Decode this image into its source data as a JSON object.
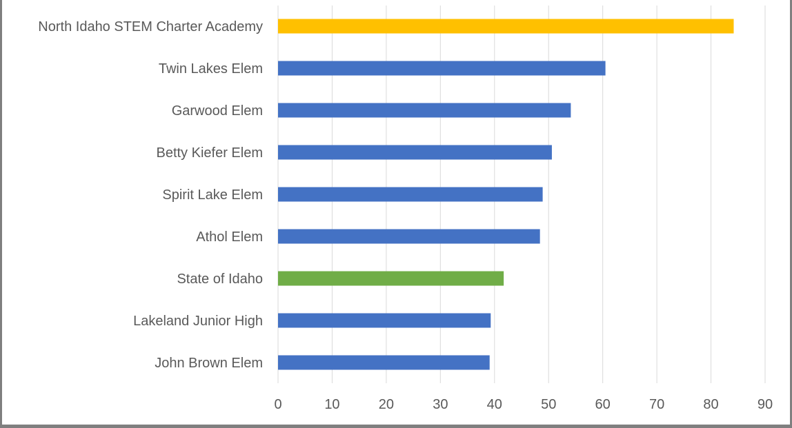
{
  "chart_data": {
    "type": "bar",
    "orientation": "horizontal",
    "title": "",
    "xlabel": "",
    "ylabel": "",
    "categories": [
      "North Idaho STEM Charter Academy",
      "Twin Lakes Elem",
      "Garwood Elem",
      "Betty Kiefer Elem",
      "Spirit Lake Elem",
      "Athol Elem",
      "State of Idaho",
      "Lakeland Junior High",
      "John Brown Elem"
    ],
    "values": [
      84.2,
      60.5,
      54.1,
      50.6,
      48.9,
      48.4,
      41.7,
      39.3,
      39.1
    ],
    "colors": [
      "#FFC000",
      "#4472C4",
      "#4472C4",
      "#4472C4",
      "#4472C4",
      "#4472C4",
      "#70AD47",
      "#4472C4",
      "#4472C4"
    ],
    "xlim": [
      0,
      90
    ],
    "ticks": [
      "0",
      "10",
      "20",
      "30",
      "40",
      "50",
      "60",
      "70",
      "80",
      "90"
    ],
    "grid": true,
    "legend": "none"
  }
}
